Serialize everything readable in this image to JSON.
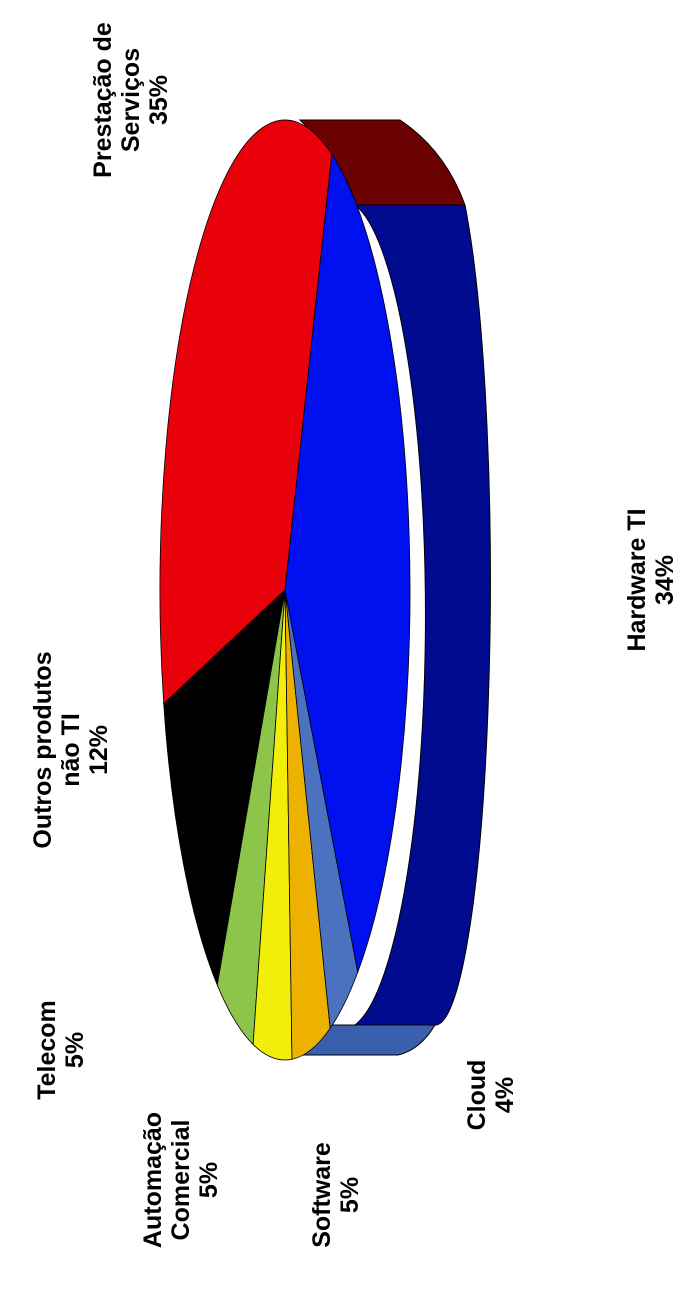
{
  "chart_data": {
    "type": "pie",
    "style": "3d-tilted, rotated 90 degrees counter-clockwise",
    "title": "",
    "legend": "none",
    "slices": [
      {
        "label": "Prestação de Serviços",
        "value": 35,
        "value_label": "35%",
        "color": "#e8000a",
        "side_color": "#6b0000"
      },
      {
        "label": "Outros produtos não TI",
        "value": 12,
        "value_label": "12%",
        "color": "#000000",
        "side_color": "#000000"
      },
      {
        "label": "Telecom",
        "value": 5,
        "value_label": "5%",
        "color": "#8cc54a",
        "side_color": "#5f8a2e"
      },
      {
        "label": "Automação Comercial",
        "value": 5,
        "value_label": "5%",
        "color": "#f2ee0a",
        "side_color": "#b8b400"
      },
      {
        "label": "Software",
        "value": 5,
        "value_label": "5%",
        "color": "#edb200",
        "side_color": "#a87e00"
      },
      {
        "label": "Cloud",
        "value": 4,
        "value_label": "4%",
        "color": "#4a72be",
        "side_color": "#3a5a99"
      },
      {
        "label": "Hardware TI",
        "value": 34,
        "value_label": "34%",
        "color": "#0010ee",
        "side_color": "#000a8a"
      }
    ]
  }
}
